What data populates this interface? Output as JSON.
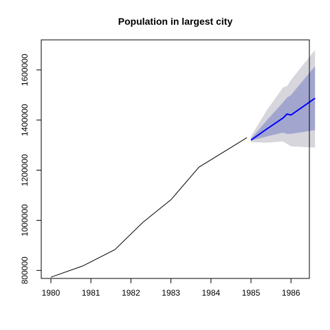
{
  "chart_data": {
    "type": "line",
    "title": "Population in largest city",
    "xlabel": "",
    "ylabel": "",
    "xlim": [
      1980,
      1986.7
    ],
    "ylim": [
      768000,
      1720000
    ],
    "x_ticks": [
      1980,
      1981,
      1982,
      1983,
      1984,
      1985,
      1986
    ],
    "y_ticks": [
      800000,
      1000000,
      1200000,
      1400000,
      1600000
    ],
    "grid": false,
    "legend": "none",
    "colors": {
      "history": "#000000",
      "forecast": "#0000ff",
      "band_80": "#a2a6cf",
      "band_95": "#d6d6dc"
    },
    "series": [
      {
        "role": "history",
        "x": [
          1980.0,
          1980.8,
          1981.6,
          1982.3,
          1983.0,
          1983.7,
          1984.9
        ],
        "y": [
          773000,
          818000,
          883000,
          992000,
          1082000,
          1212000,
          1330000
        ]
      },
      {
        "role": "forecast",
        "x": [
          1985.0,
          1985.4,
          1985.8,
          1985.9,
          1986.0,
          1986.6
        ],
        "y": [
          1320000,
          1365000,
          1408000,
          1424000,
          1420000,
          1487000
        ],
        "lo80": [
          1318000,
          1335000,
          1350000,
          1345000,
          1345000,
          1360000
        ],
        "hi80": [
          1325000,
          1400000,
          1470000,
          1490000,
          1500000,
          1615000
        ],
        "lo95": [
          1312000,
          1310000,
          1315000,
          1305000,
          1295000,
          1290000
        ],
        "hi95": [
          1335000,
          1440000,
          1530000,
          1535000,
          1560000,
          1680000
        ]
      }
    ]
  }
}
